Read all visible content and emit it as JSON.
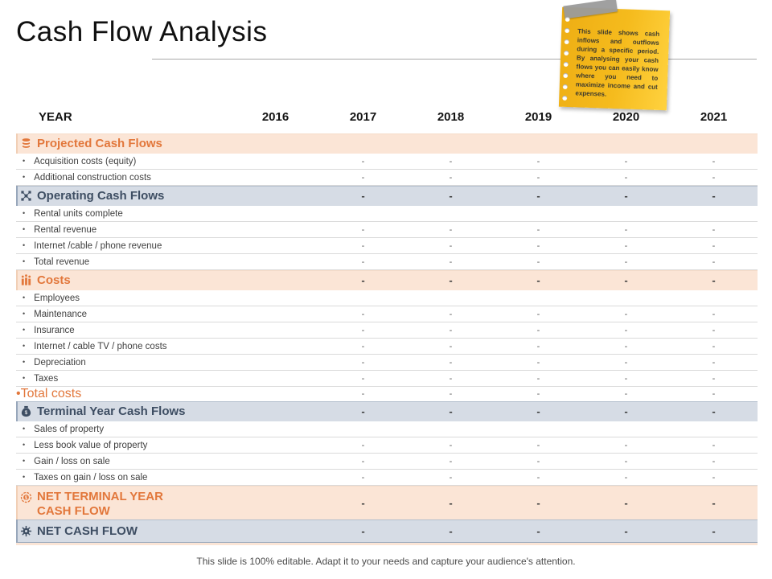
{
  "slide": {
    "title": "Cash Flow Analysis",
    "footer": "This slide is 100% editable. Adapt it to your needs and capture your audience's attention."
  },
  "sticky_note": {
    "text": "This slide shows cash inflows and outflows during a specific period. By analysing your cash flows you can easily know where you need to maximize income and cut expenses."
  },
  "colors": {
    "accent_orange": "#e2773b",
    "peach_row_bg": "#fbe5d6",
    "blue_row_bg": "#d6dce5",
    "navy_text": "#3e4e63",
    "note_yellow": "#f5bb1d",
    "tape_gray": "#9b9b9b"
  },
  "table": {
    "bullet": "•",
    "header": {
      "label": "YEAR",
      "years": [
        "2016",
        "2017",
        "2018",
        "2019",
        "2020",
        "2021"
      ]
    },
    "rows": [
      {
        "type": "section-peach",
        "icon": "coins-icon",
        "label": "Projected Cash Flows",
        "values": [
          "",
          "",
          "",
          "",
          "",
          ""
        ]
      },
      {
        "type": "item",
        "label": "Acquisition costs (equity)",
        "values": [
          "",
          "-",
          "-",
          "-",
          "-",
          "-"
        ]
      },
      {
        "type": "item",
        "label": "Additional construction costs",
        "values": [
          "",
          "-",
          "-",
          "-",
          "-",
          "-"
        ]
      },
      {
        "type": "section-blue",
        "icon": "network-icon",
        "label": "Operating Cash Flows",
        "values": [
          "",
          "-",
          "-",
          "-",
          "-",
          "-"
        ]
      },
      {
        "type": "item",
        "label": "Rental units complete",
        "values": [
          "",
          "",
          "",
          "",
          "",
          ""
        ]
      },
      {
        "type": "item",
        "label": "Rental revenue",
        "values": [
          "",
          "-",
          "-",
          "-",
          "-",
          "-"
        ]
      },
      {
        "type": "item",
        "label": "Internet /cable / phone revenue",
        "values": [
          "",
          "-",
          "-",
          "-",
          "-",
          "-"
        ]
      },
      {
        "type": "item",
        "label": "Total revenue",
        "values": [
          "",
          "-",
          "-",
          "-",
          "-",
          "-"
        ]
      },
      {
        "type": "section-peach",
        "icon": "bar-chart-icon",
        "label": "Costs",
        "values": [
          "",
          "-",
          "-",
          "-",
          "-",
          "-"
        ]
      },
      {
        "type": "item",
        "label": "Employees",
        "values": [
          "",
          "",
          "",
          "",
          "",
          ""
        ]
      },
      {
        "type": "item",
        "label": "Maintenance",
        "values": [
          "",
          "-",
          "-",
          "-",
          "-",
          "-"
        ]
      },
      {
        "type": "item",
        "label": "Insurance",
        "values": [
          "",
          "-",
          "-",
          "-",
          "-",
          "-"
        ]
      },
      {
        "type": "item",
        "label": "Internet / cable TV / phone costs",
        "values": [
          "",
          "-",
          "-",
          "-",
          "-",
          "-"
        ]
      },
      {
        "type": "item",
        "label": "Depreciation",
        "values": [
          "",
          "-",
          "-",
          "-",
          "-",
          "-"
        ]
      },
      {
        "type": "item",
        "label": "Taxes",
        "values": [
          "",
          "-",
          "-",
          "-",
          "-",
          "-"
        ]
      },
      {
        "type": "item-orange",
        "label": "Total costs",
        "values": [
          "",
          "-",
          "-",
          "-",
          "-",
          "-"
        ]
      },
      {
        "type": "section-blue",
        "icon": "money-bag-icon",
        "label": "Terminal Year Cash Flows",
        "values": [
          "",
          "-",
          "-",
          "-",
          "-",
          "-"
        ]
      },
      {
        "type": "item",
        "label": "Sales of property",
        "values": [
          "",
          "",
          "",
          "",
          "",
          ""
        ]
      },
      {
        "type": "item",
        "label": "Less book value of property",
        "values": [
          "",
          "-",
          "-",
          "-",
          "-",
          "-"
        ]
      },
      {
        "type": "item",
        "label": "Gain / loss on sale",
        "values": [
          "",
          "-",
          "-",
          "-",
          "-",
          "-"
        ]
      },
      {
        "type": "item",
        "label": "Taxes on gain / loss on sale",
        "values": [
          "",
          "-",
          "-",
          "-",
          "-",
          "-"
        ]
      },
      {
        "type": "section-peach-big",
        "icon": "coin-target-icon",
        "label": "Net Terminal Year Cash Flow",
        "values": [
          "",
          "-",
          "-",
          "-",
          "-",
          "-"
        ]
      },
      {
        "type": "section-blue-big",
        "icon": "gear-icon",
        "label": "Net Cash Flow",
        "values": [
          "",
          "-",
          "-",
          "-",
          "-",
          "-"
        ]
      }
    ]
  }
}
